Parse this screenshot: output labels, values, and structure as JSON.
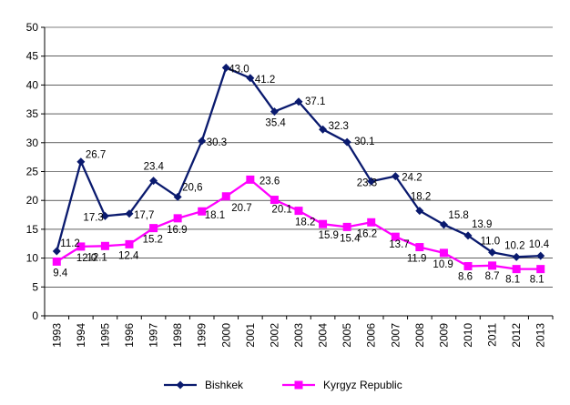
{
  "chart_data": {
    "type": "line",
    "title": "",
    "xlabel": "",
    "ylabel": "",
    "x": [
      "1993",
      "1994",
      "1995",
      "1996",
      "1997",
      "1998",
      "1999",
      "2000",
      "2001",
      "2002",
      "2003",
      "2004",
      "2005",
      "2006",
      "2007",
      "2008",
      "2009",
      "2010",
      "2011",
      "2012",
      "2013"
    ],
    "ylim": [
      0,
      50
    ],
    "yticks": [
      "0",
      "5",
      "10",
      "15",
      "20",
      "25",
      "30",
      "35",
      "40",
      "45",
      "50"
    ],
    "grid": true,
    "legend": "bottom",
    "series": [
      {
        "name": "Bishkek",
        "color": "#0a1a6e",
        "marker": "diamond",
        "values": [
          11.2,
          26.7,
          17.3,
          17.7,
          23.4,
          20.6,
          30.3,
          43.0,
          41.2,
          35.4,
          37.1,
          32.3,
          30.1,
          23.3,
          24.2,
          18.2,
          15.8,
          13.9,
          11.0,
          10.2,
          10.4
        ],
        "labels": [
          "11.2",
          "26.7",
          "17.3",
          "17,7",
          "23.4",
          "20,6",
          "30.3",
          "43.0",
          "41.2",
          "35.4",
          "37.1",
          "32.3",
          "30.1",
          "23.3",
          "24.2",
          "18.2",
          "15.8",
          "13.9",
          "11.0",
          "10.2",
          "10.4"
        ]
      },
      {
        "name": "Kyrgyz Republic",
        "color": "#ff00ff",
        "marker": "square",
        "values": [
          9.4,
          12.0,
          12.1,
          12.4,
          15.2,
          16.9,
          18.1,
          20.7,
          23.6,
          20.1,
          18.2,
          15.9,
          15.4,
          16.2,
          13.7,
          11.9,
          10.9,
          8.6,
          8.7,
          8.1,
          8.1
        ],
        "labels": [
          "9.4",
          "12.0",
          "12.1",
          "12.4",
          "15.2",
          "16.9",
          "18.1",
          "20.7",
          "23.6",
          "20.1",
          "18.2",
          "15.9",
          "15.4",
          "16.2",
          "13.7",
          "11.9",
          "10.9",
          "8.6",
          "8.7",
          "8.1",
          "8.1"
        ]
      }
    ]
  }
}
